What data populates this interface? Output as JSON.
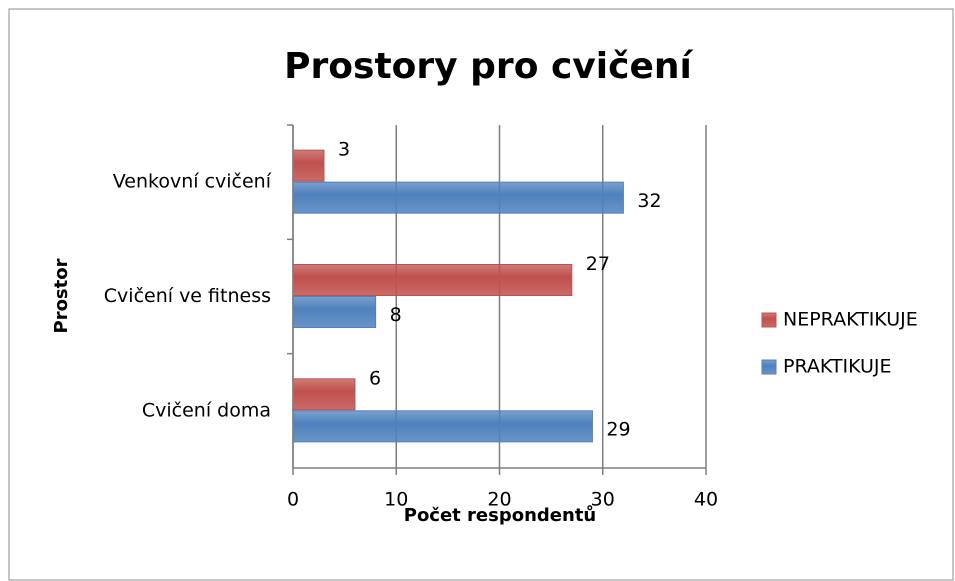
{
  "chart_data": {
    "type": "bar",
    "orientation": "horizontal",
    "title": "Prostory pro cvičení",
    "x_label": "Počet respondentů",
    "y_label": "Prostor",
    "categories": [
      "Cvičení doma",
      "Cvičení ve fitness",
      "Venkovní cvičení"
    ],
    "series": [
      {
        "name": "NEPRAKTIKUJE",
        "color": "#c0504d",
        "values": [
          6,
          27,
          3
        ]
      },
      {
        "name": "PRAKTIKUJE",
        "color": "#4f81bd",
        "values": [
          29,
          8,
          32
        ]
      }
    ],
    "xlim": [
      0,
      40
    ],
    "xticks": [
      0,
      10,
      20,
      30,
      40
    ],
    "grid": true,
    "legend": "right"
  }
}
